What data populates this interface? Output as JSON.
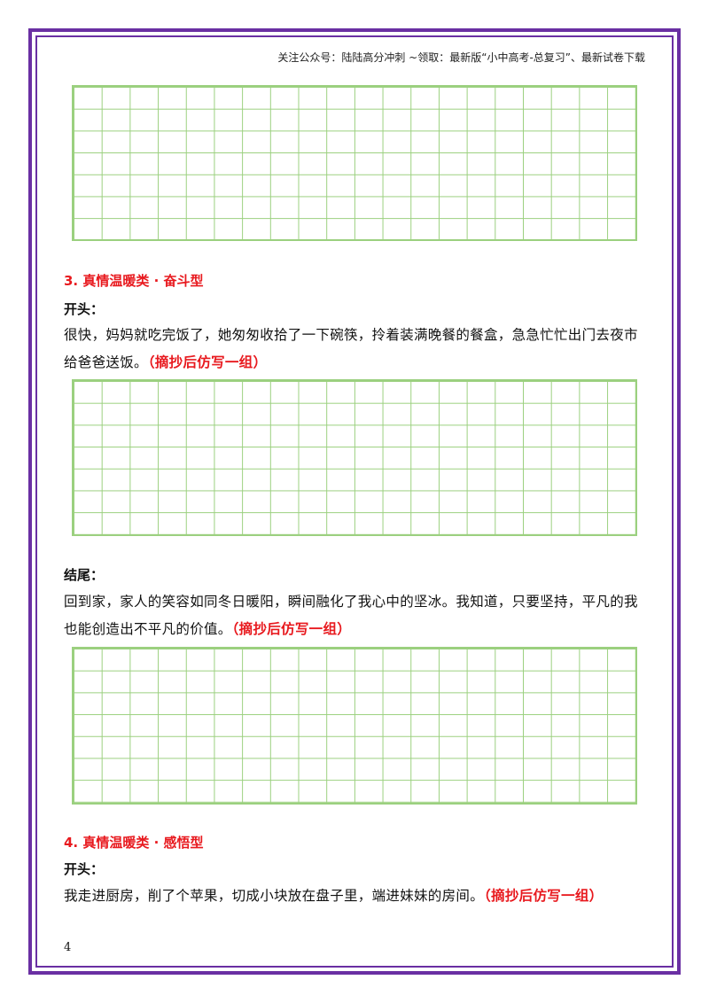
{
  "header": {
    "text": "关注公众号：陆陆高分冲刺 ~领取：最新版“小中高考-总复习”、最新试卷下载"
  },
  "section3": {
    "title": "3.  真情温暖类 · 奋斗型",
    "opening_label": "开头：",
    "opening_text": "很快，妈妈就吃完饭了，她匆匆收拾了一下碗筷，拎着装满晚餐的餐盒，急急忙忙出门去夜市给爸爸送饭。",
    "opening_note": "（摘抄后仿写一组）",
    "ending_label": "结尾：",
    "ending_text": "回到家，家人的笑容如同冬日暖阳，瞬间融化了我心中的坚冰。我知道，只要坚持，平凡的我也能创造出不平凡的价值。",
    "ending_note": "（摘抄后仿写一组）"
  },
  "section4": {
    "title": "4.  真情温暖类 · 感悟型",
    "opening_label": "开头：",
    "opening_text": "我走进厨房，削了个苹果，切成小块放在盘子里，端进妹妹的房间。",
    "opening_note": "（摘抄后仿写一组）"
  },
  "page_number": "4",
  "colors": {
    "frame": "#6a2fa3",
    "grid": "#9bd07f",
    "accent": "#e8191e"
  }
}
